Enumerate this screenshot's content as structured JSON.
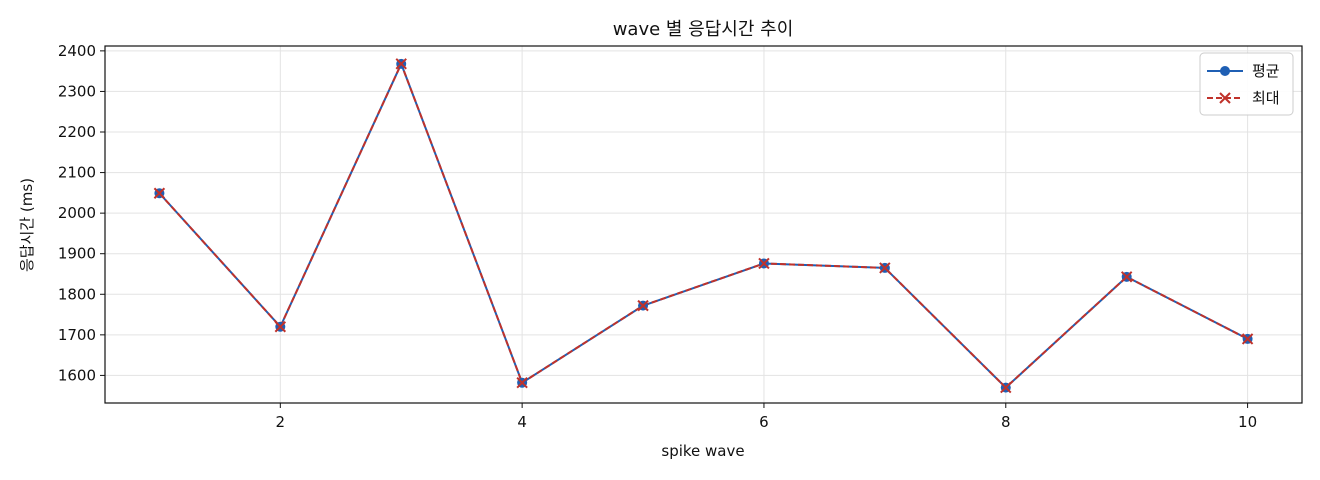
{
  "chart_data": {
    "type": "line",
    "title": "wave 별 응답시간 추이",
    "xlabel": "spike wave",
    "ylabel": "응답시간 (ms)",
    "x": [
      1,
      2,
      3,
      4,
      5,
      6,
      7,
      8,
      9,
      10
    ],
    "xlim": [
      0.55,
      10.45
    ],
    "ylim": [
      1532,
      2412
    ],
    "xticks": [
      2,
      4,
      6,
      8,
      10
    ],
    "yticks": [
      1600,
      1700,
      1800,
      1900,
      2000,
      2100,
      2200,
      2300,
      2400
    ],
    "grid": true,
    "legend_position": "top-right",
    "series": [
      {
        "name": "평균",
        "marker": "circle",
        "line_style": "solid",
        "color": "#1f5fb4",
        "values": [
          2049,
          1720,
          2368,
          1582,
          1772,
          1876,
          1865,
          1570,
          1843,
          1690
        ]
      },
      {
        "name": "최대",
        "marker": "x",
        "line_style": "dashed",
        "color": "#c0322b",
        "values": [
          2049,
          1720,
          2368,
          1582,
          1772,
          1876,
          1865,
          1570,
          1843,
          1690
        ]
      }
    ]
  }
}
